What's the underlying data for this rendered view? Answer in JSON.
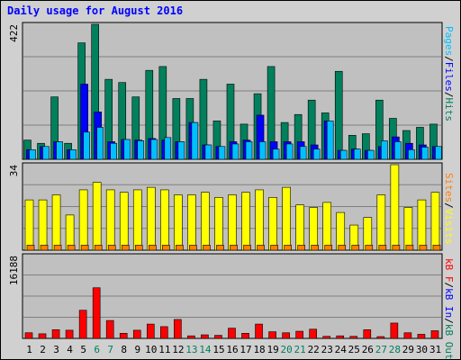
{
  "title": "Daily usage for August 2016",
  "colors": {
    "background": "#d0d0d0",
    "plot_background": "#c0c0c0",
    "gridline": "#808080",
    "hits": "#00805c",
    "files": "#0000ff",
    "pages": "#00c0ff",
    "visits": "#ffff00",
    "sites": "#ff8000",
    "kb_in": "#0000ff",
    "kb_out": "#00805c",
    "kb_f": "#ff0000",
    "day_normal": "#000000",
    "day_weekend": "#00805c"
  },
  "legend_right": {
    "top": [
      {
        "text": "Pages",
        "color": "#00c0ff"
      },
      {
        "text": "/",
        "color": "#000000"
      },
      {
        "text": "Files",
        "color": "#0000ff"
      },
      {
        "text": "/",
        "color": "#000000"
      },
      {
        "text": "Hits",
        "color": "#00805c"
      }
    ],
    "middle": [
      {
        "text": "Sites",
        "color": "#ff8000"
      },
      {
        "text": "/",
        "color": "#000000"
      },
      {
        "text": "Visits",
        "color": "#ffff00"
      }
    ],
    "bottom": [
      {
        "text": "kB F",
        "color": "#ff0000"
      },
      {
        "text": "/",
        "color": "#000000"
      },
      {
        "text": "kB In",
        "color": "#0000ff"
      },
      {
        "text": "/",
        "color": "#000000"
      },
      {
        "text": "kB Out",
        "color": "#00805c"
      }
    ]
  },
  "chart_data": [
    {
      "type": "bar",
      "panel": "hits",
      "x": [
        1,
        2,
        3,
        4,
        5,
        6,
        7,
        8,
        9,
        10,
        11,
        12,
        13,
        14,
        15,
        16,
        17,
        18,
        19,
        20,
        21,
        22,
        23,
        24,
        25,
        26,
        27,
        28,
        29,
        30,
        31
      ],
      "ymax_label": "422",
      "ymax": 422,
      "grid": true,
      "series": [
        {
          "name": "Hits",
          "color": "#00805c",
          "values": [
            60,
            50,
            195,
            50,
            364,
            422,
            250,
            240,
            195,
            278,
            290,
            190,
            190,
            250,
            120,
            235,
            110,
            205,
            290,
            115,
            140,
            185,
            145,
            275,
            75,
            80,
            185,
            128,
            90,
            100,
            110
          ]
        },
        {
          "name": "Files",
          "color": "#0000ff",
          "values": [
            30,
            40,
            55,
            30,
            235,
            148,
            55,
            62,
            60,
            65,
            60,
            55,
            115,
            45,
            40,
            55,
            60,
            138,
            55,
            55,
            55,
            45,
            120,
            28,
            32,
            28,
            40,
            70,
            50,
            45,
            40
          ]
        },
        {
          "name": "Pages",
          "color": "#00c0ff",
          "values": [
            30,
            40,
            55,
            30,
            85,
            100,
            50,
            62,
            58,
            62,
            68,
            55,
            115,
            45,
            40,
            48,
            55,
            55,
            32,
            48,
            40,
            32,
            120,
            28,
            32,
            28,
            58,
            55,
            30,
            38,
            40
          ]
        }
      ]
    },
    {
      "type": "bar",
      "panel": "visits",
      "x": [
        1,
        2,
        3,
        4,
        5,
        6,
        7,
        8,
        9,
        10,
        11,
        12,
        13,
        14,
        15,
        16,
        17,
        18,
        19,
        20,
        21,
        22,
        23,
        24,
        25,
        26,
        27,
        28,
        29,
        30,
        31
      ],
      "ymax_label": "34",
      "ymax": 34,
      "grid": true,
      "series": [
        {
          "name": "Visits",
          "color": "#ffff00",
          "values": [
            20,
            20,
            22,
            14,
            24,
            27,
            24,
            23,
            24,
            25,
            24,
            22,
            22,
            23,
            21,
            22,
            23,
            24,
            21,
            25,
            18,
            17,
            19,
            15,
            10,
            13,
            22,
            34,
            17,
            20,
            23
          ]
        },
        {
          "name": "Sites",
          "color": "#ff8000",
          "values": [
            2,
            2,
            2,
            2,
            2,
            2,
            2,
            2,
            2,
            2,
            2,
            2,
            2,
            2,
            2,
            2,
            2,
            2,
            2,
            2,
            2,
            2,
            2,
            2,
            2,
            2,
            2,
            2,
            2,
            2,
            2
          ]
        }
      ]
    },
    {
      "type": "bar",
      "panel": "kbytes",
      "x": [
        1,
        2,
        3,
        4,
        5,
        6,
        7,
        8,
        9,
        10,
        11,
        12,
        13,
        14,
        15,
        16,
        17,
        18,
        19,
        20,
        21,
        22,
        23,
        24,
        25,
        26,
        27,
        28,
        29,
        30,
        31
      ],
      "ymax_label": "16188",
      "ymax": 16188,
      "grid": true,
      "series": [
        {
          "name": "kB F",
          "color": "#ff0000",
          "values": [
            1100,
            900,
            1700,
            1600,
            5500,
            9900,
            3500,
            1000,
            1600,
            2800,
            2300,
            3700,
            500,
            700,
            600,
            2000,
            1000,
            2800,
            1300,
            1100,
            1400,
            1800,
            400,
            500,
            400,
            1700,
            200,
            3000,
            1100,
            800,
            1500
          ]
        }
      ]
    }
  ],
  "days": [
    {
      "n": "1",
      "weekend": false
    },
    {
      "n": "2",
      "weekend": false
    },
    {
      "n": "3",
      "weekend": false
    },
    {
      "n": "4",
      "weekend": false
    },
    {
      "n": "5",
      "weekend": false
    },
    {
      "n": "6",
      "weekend": true
    },
    {
      "n": "7",
      "weekend": true
    },
    {
      "n": "8",
      "weekend": false
    },
    {
      "n": "9",
      "weekend": false
    },
    {
      "n": "10",
      "weekend": false
    },
    {
      "n": "11",
      "weekend": false
    },
    {
      "n": "12",
      "weekend": false
    },
    {
      "n": "13",
      "weekend": true
    },
    {
      "n": "14",
      "weekend": true
    },
    {
      "n": "15",
      "weekend": false
    },
    {
      "n": "16",
      "weekend": false
    },
    {
      "n": "17",
      "weekend": false
    },
    {
      "n": "18",
      "weekend": false
    },
    {
      "n": "19",
      "weekend": false
    },
    {
      "n": "20",
      "weekend": true
    },
    {
      "n": "21",
      "weekend": true
    },
    {
      "n": "22",
      "weekend": false
    },
    {
      "n": "23",
      "weekend": false
    },
    {
      "n": "24",
      "weekend": false
    },
    {
      "n": "25",
      "weekend": false
    },
    {
      "n": "26",
      "weekend": false
    },
    {
      "n": "27",
      "weekend": true
    },
    {
      "n": "28",
      "weekend": true
    },
    {
      "n": "29",
      "weekend": false
    },
    {
      "n": "30",
      "weekend": false
    },
    {
      "n": "31",
      "weekend": false
    }
  ]
}
